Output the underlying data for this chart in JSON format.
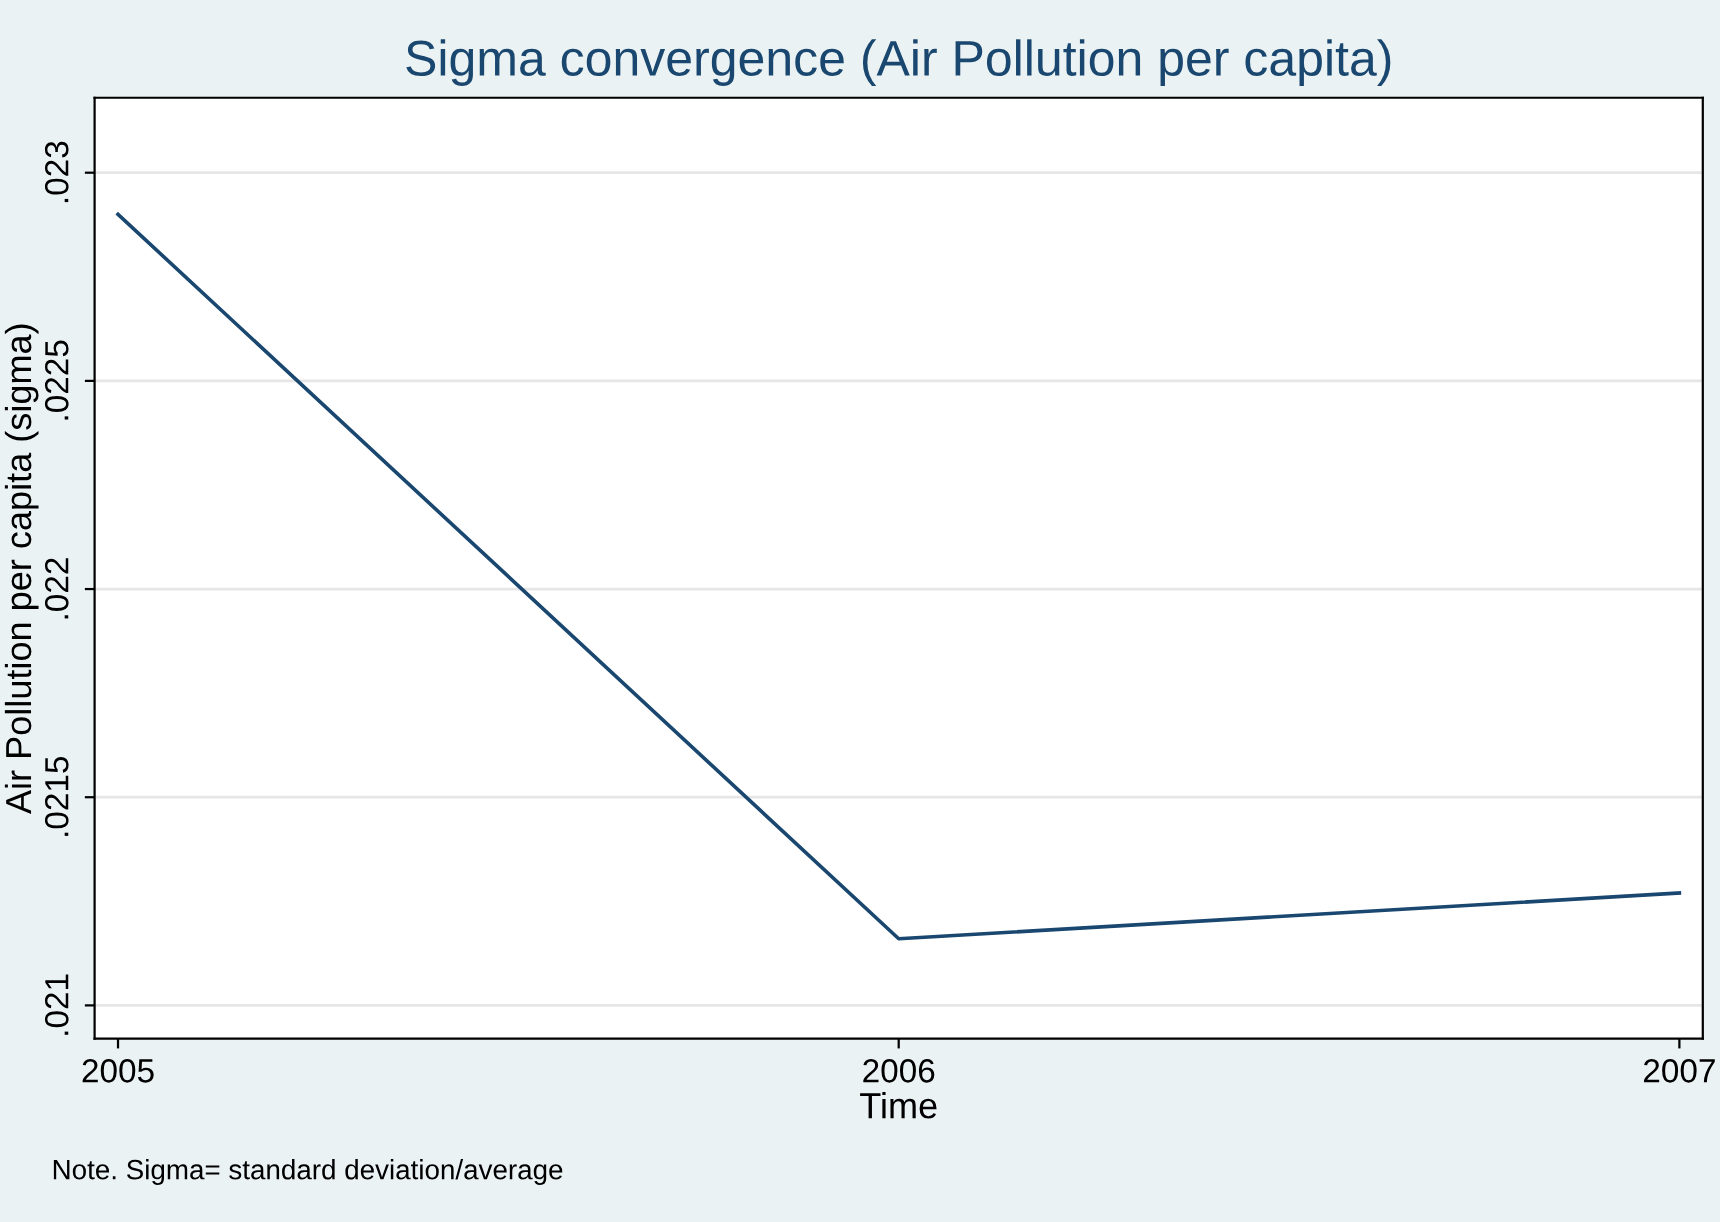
{
  "chart_data": {
    "type": "line",
    "title": "Sigma convergence (Air Pollution per capita)",
    "xlabel": "Time",
    "ylabel": "Air Pollution per capita (sigma)",
    "annotations": [
      "Note. Sigma= standard deviation/average"
    ],
    "x": [
      2005,
      2006,
      2007
    ],
    "series": [
      {
        "color": "#1a476f",
        "values": [
          0.0229,
          0.02116,
          0.02127
        ]
      }
    ],
    "xlim": [
      2004.97,
      2007.03
    ],
    "xticks": [
      2005,
      2006,
      2007
    ],
    "ylim": [
      0.02092,
      0.02318
    ],
    "yticks": [
      {
        "value": 0.021,
        "label": ".021"
      },
      {
        "value": 0.0215,
        "label": ".0215"
      },
      {
        "value": 0.022,
        "label": ".022"
      },
      {
        "value": 0.0225,
        "label": ".0225"
      },
      {
        "value": 0.023,
        "label": ".023"
      }
    ],
    "grid": "y",
    "legend": false,
    "marker": "none",
    "line_style": "solid"
  }
}
